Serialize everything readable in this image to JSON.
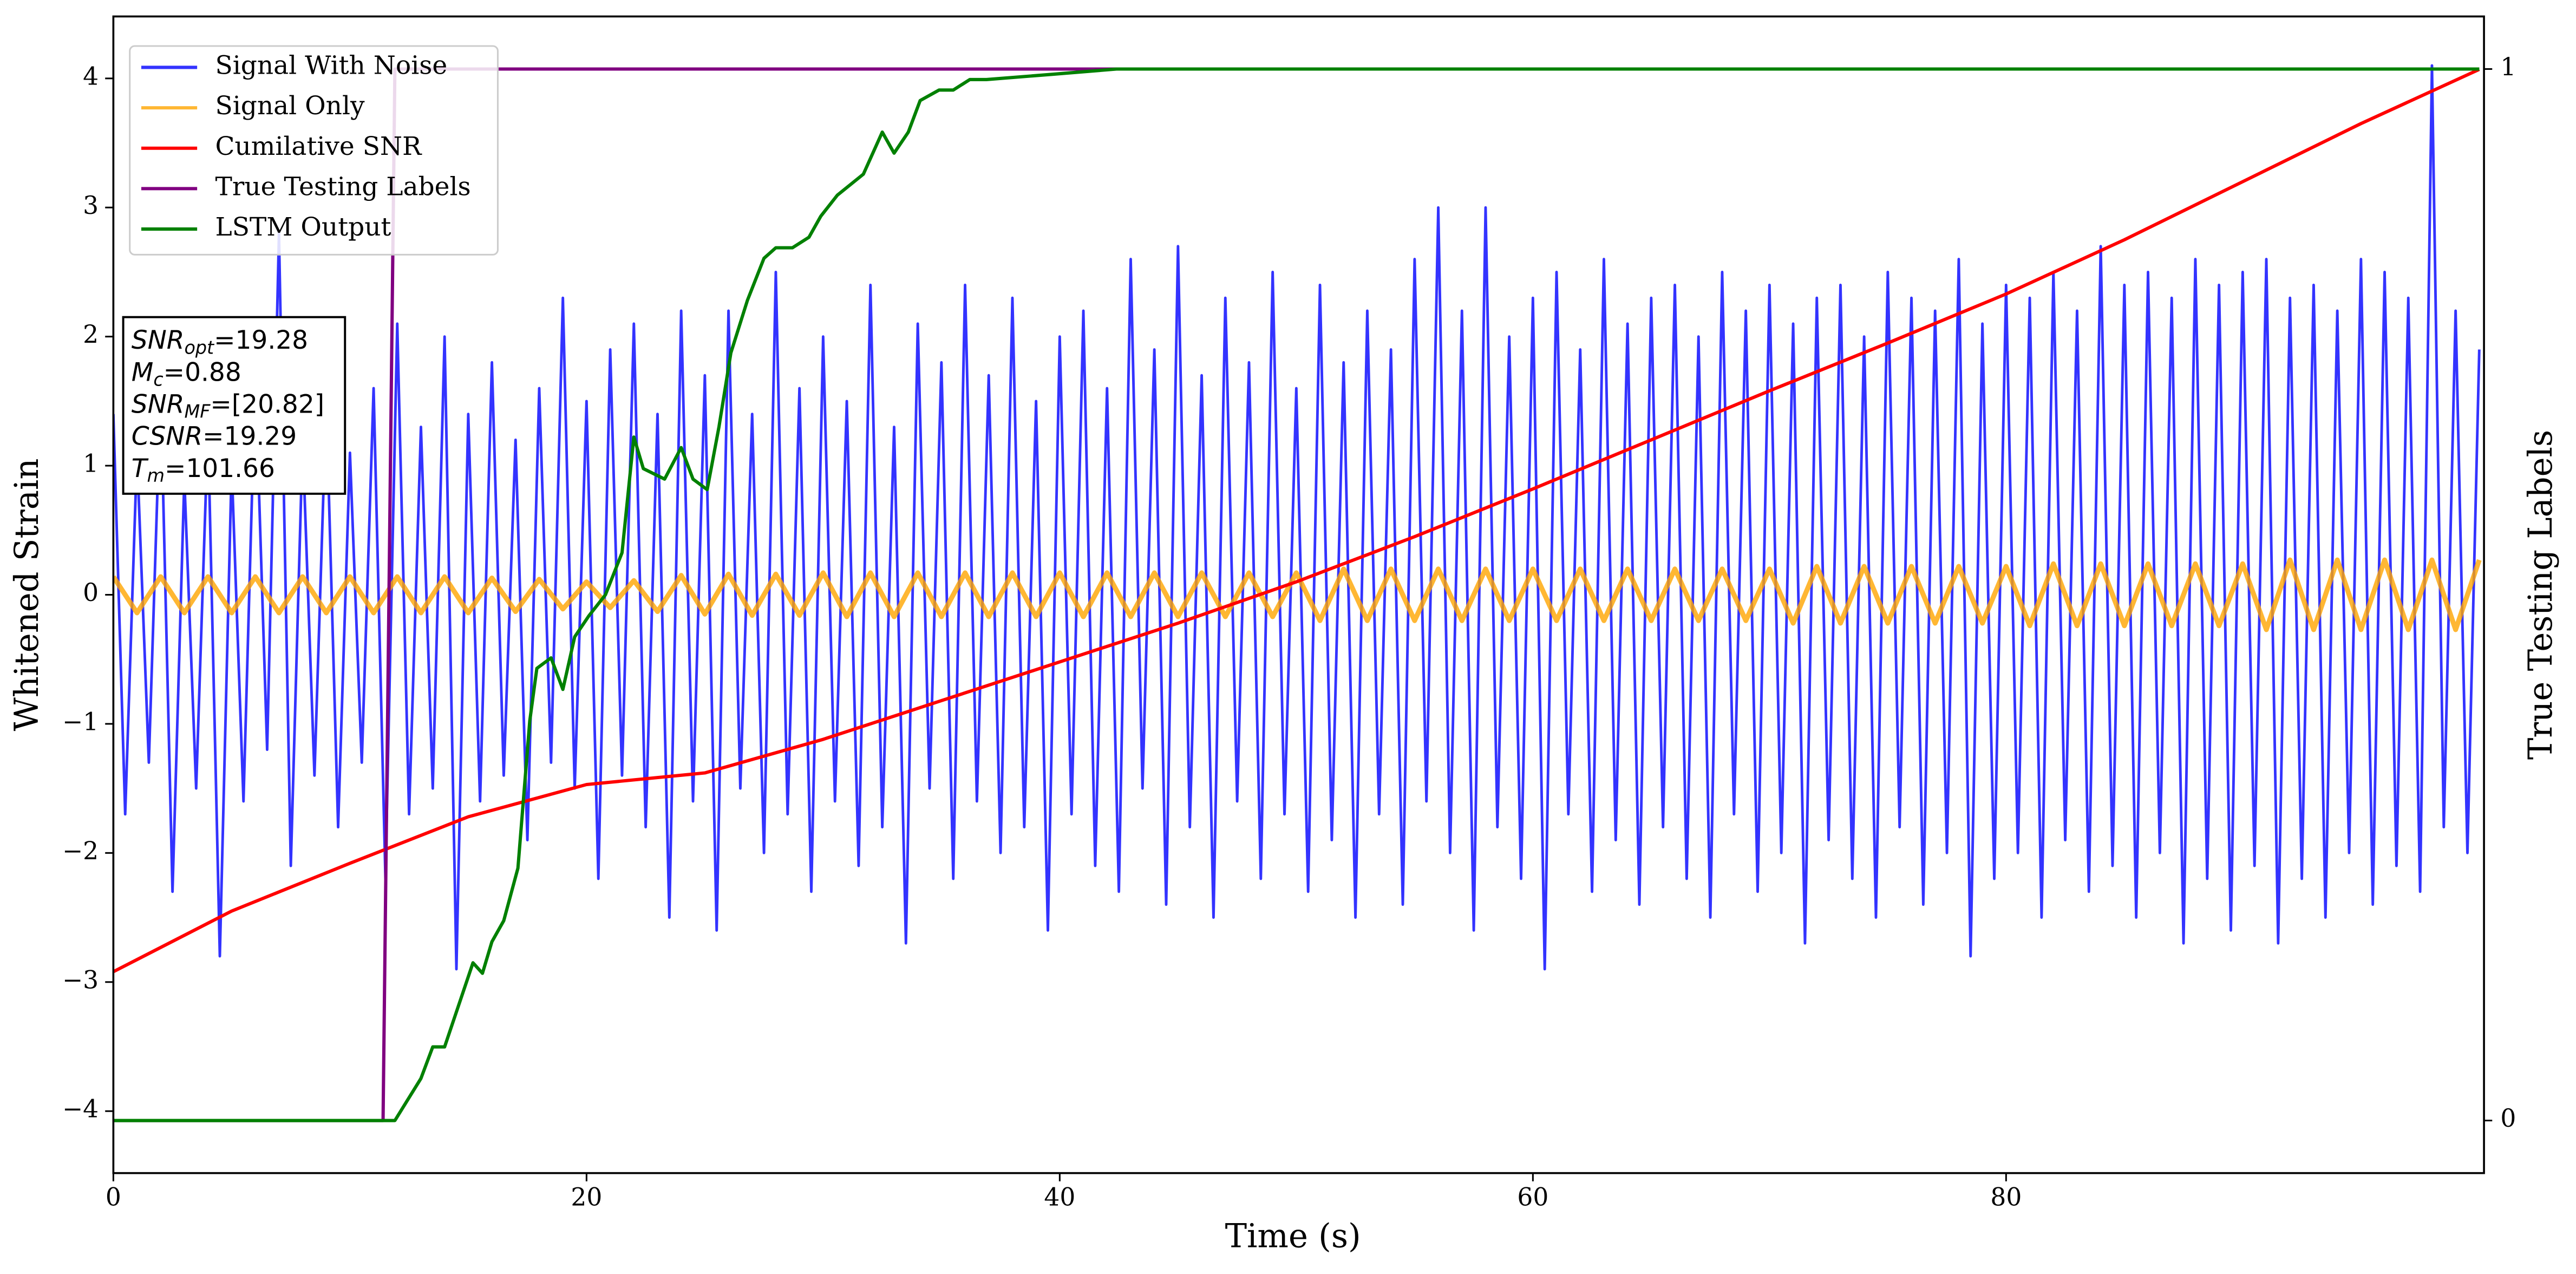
{
  "chart_data": {
    "type": "line",
    "xlabel": "Time (s)",
    "ylabel": "Whitened Strain",
    "y2label": "True Testing Labels",
    "xlim": [
      0,
      100.2
    ],
    "ylim": [
      -4.48,
      4.48
    ],
    "y2lim": [
      -0.05,
      1.05
    ],
    "xticks": [
      0,
      20,
      40,
      60,
      80
    ],
    "yticks": [
      {
        "value": -4,
        "label": "−4"
      },
      {
        "value": -3,
        "label": "−3"
      },
      {
        "value": -2,
        "label": "−2"
      },
      {
        "value": -1,
        "label": "−1"
      },
      0,
      1,
      2,
      3,
      4
    ],
    "y2ticks": [
      0,
      1
    ],
    "legend": "upper left",
    "annotation": [
      {
        "symbol": "SNR",
        "subscript": "opt",
        "value": "=19.28"
      },
      {
        "symbol": "M",
        "subscript": "c",
        "value": "=0.88"
      },
      {
        "symbol": "SNR",
        "subscript": "MF",
        "value": "=[20.82]"
      },
      {
        "symbol": "CSNR",
        "value": "=19.29"
      },
      {
        "symbol": "T",
        "subscript": "m",
        "value": "=101.66"
      }
    ],
    "series": [
      {
        "name": "Signal With Noise",
        "color": "#0000ff",
        "x": [
          0,
          0.5,
          1,
          1.5,
          2,
          2.5,
          3,
          3.5,
          4,
          4.5,
          5,
          5.5,
          6,
          6.5,
          7,
          7.5,
          8,
          8.5,
          9,
          9.5,
          10,
          10.5,
          11,
          11.5,
          12,
          12.5,
          13,
          13.5,
          14,
          14.5,
          15,
          15.5,
          16,
          16.5,
          17,
          17.5,
          18,
          18.5,
          19,
          19.5,
          20,
          20.5,
          21,
          21.5,
          22,
          22.5,
          23,
          23.5,
          24,
          24.5,
          25,
          25.5,
          26,
          26.5,
          27,
          27.5,
          28,
          28.5,
          29,
          29.5,
          30,
          30.5,
          31,
          31.5,
          32,
          32.5,
          33,
          33.5,
          34,
          34.5,
          35,
          35.5,
          36,
          36.5,
          37,
          37.5,
          38,
          38.5,
          39,
          39.5,
          40,
          40.5,
          41,
          41.5,
          42,
          42.5,
          43,
          43.5,
          44,
          44.5,
          45,
          45.5,
          46,
          46.5,
          47,
          47.5,
          48,
          48.5,
          49,
          49.5,
          50,
          50.5,
          51,
          51.5,
          52,
          52.5,
          53,
          53.5,
          54,
          54.5,
          55,
          55.5,
          56,
          56.5,
          57,
          57.5,
          58,
          58.5,
          59,
          59.5,
          60,
          60.5,
          61,
          61.5,
          62,
          62.5,
          63,
          63.5,
          64,
          64.5,
          65,
          65.5,
          66,
          66.5,
          67,
          67.5,
          68,
          68.5,
          69,
          69.5,
          70,
          70.5,
          71,
          71.5,
          72,
          72.5,
          73,
          73.5,
          74,
          74.5,
          75,
          75.5,
          76,
          76.5,
          77,
          77.5,
          78,
          78.5,
          79,
          79.5,
          80,
          80.5,
          81,
          81.5,
          82,
          82.5,
          83,
          83.5,
          84,
          84.5,
          85,
          85.5,
          86,
          86.5,
          87,
          87.5,
          88,
          88.5,
          89,
          89.5,
          90,
          90.5,
          91,
          91.5,
          92,
          92.5,
          93,
          93.5,
          94,
          94.5,
          95,
          95.5,
          96,
          96.5,
          97,
          97.5,
          98,
          98.5,
          99,
          99.5,
          100
        ],
        "values": [
          1.4,
          -1.7,
          1.1,
          -1.3,
          1.6,
          -2.3,
          0.9,
          -1.5,
          1.3,
          -2.8,
          1.0,
          -1.6,
          1.7,
          -1.2,
          2.8,
          -2.1,
          1.2,
          -1.4,
          1.5,
          -1.8,
          1.1,
          -1.3,
          1.6,
          -2.2,
          2.1,
          -1.7,
          1.3,
          -1.5,
          2.0,
          -2.9,
          1.4,
          -1.6,
          1.8,
          -1.4,
          1.2,
          -1.9,
          1.6,
          -1.3,
          2.3,
          -1.5,
          1.5,
          -2.2,
          1.9,
          -1.4,
          2.1,
          -1.8,
          1.4,
          -2.5,
          2.2,
          -1.6,
          1.7,
          -2.6,
          2.2,
          -1.5,
          1.4,
          -2.0,
          2.5,
          -1.7,
          1.6,
          -2.3,
          2.0,
          -1.6,
          1.5,
          -2.1,
          2.4,
          -1.8,
          1.3,
          -2.7,
          2.1,
          -1.5,
          1.8,
          -2.2,
          2.4,
          -1.6,
          1.7,
          -2.0,
          2.3,
          -1.8,
          1.5,
          -2.6,
          2.0,
          -1.7,
          2.2,
          -2.1,
          1.6,
          -2.3,
          2.6,
          -1.5,
          1.9,
          -2.4,
          2.7,
          -1.8,
          1.7,
          -2.5,
          2.3,
          -1.6,
          1.8,
          -2.2,
          2.5,
          -1.7,
          1.6,
          -2.3,
          2.4,
          -1.9,
          1.8,
          -2.5,
          2.2,
          -1.7,
          1.9,
          -2.4,
          2.6,
          -1.6,
          3.0,
          -2.0,
          2.2,
          -2.6,
          3.0,
          -1.8,
          2.0,
          -2.2,
          2.3,
          -2.9,
          2.5,
          -1.7,
          1.9,
          -2.3,
          2.6,
          -1.9,
          2.1,
          -2.4,
          2.3,
          -1.8,
          2.4,
          -2.2,
          2.0,
          -2.5,
          2.5,
          -1.7,
          2.2,
          -2.3,
          2.4,
          -2.0,
          2.1,
          -2.7,
          2.3,
          -1.9,
          2.4,
          -2.2,
          2.0,
          -2.5,
          2.5,
          -1.8,
          2.3,
          -2.4,
          2.2,
          -2.0,
          2.6,
          -2.8,
          2.1,
          -2.2,
          2.4,
          -2.0,
          2.3,
          -2.5,
          2.5,
          -1.9,
          2.2,
          -2.3,
          2.7,
          -2.1,
          2.4,
          -2.5,
          2.5,
          -2.0,
          2.3,
          -2.7,
          2.6,
          -2.2,
          2.4,
          -2.6,
          2.5,
          -2.1,
          2.6,
          -2.7,
          2.3,
          -2.2,
          2.4,
          -2.5,
          2.2,
          -2.0,
          2.6,
          -2.4,
          2.5,
          -2.1,
          2.3,
          -2.3,
          4.1,
          -1.8,
          2.2,
          -2.0,
          1.9
        ]
      },
      {
        "name": "Signal Only",
        "color": "#ffa500",
        "x": [
          0,
          1,
          2,
          3,
          4,
          5,
          6,
          7,
          8,
          9,
          10,
          11,
          12,
          13,
          14,
          15,
          16,
          17,
          18,
          19,
          20,
          21,
          22,
          23,
          24,
          25,
          26,
          27,
          28,
          29,
          30,
          31,
          32,
          33,
          34,
          35,
          36,
          37,
          38,
          39,
          40,
          41,
          42,
          43,
          44,
          45,
          46,
          47,
          48,
          49,
          50,
          51,
          52,
          53,
          54,
          55,
          56,
          57,
          58,
          59,
          60,
          61,
          62,
          63,
          64,
          65,
          66,
          67,
          68,
          69,
          70,
          71,
          72,
          73,
          74,
          75,
          76,
          77,
          78,
          79,
          80,
          81,
          82,
          83,
          84,
          85,
          86,
          87,
          88,
          89,
          90,
          91,
          92,
          93,
          94,
          95,
          96,
          97,
          98,
          99,
          100
        ],
        "values": [
          0.14,
          -0.14,
          0.14,
          -0.14,
          0.14,
          -0.14,
          0.14,
          -0.14,
          0.14,
          -0.14,
          0.14,
          -0.14,
          0.14,
          -0.14,
          0.14,
          -0.14,
          0.13,
          -0.13,
          0.12,
          -0.11,
          0.1,
          -0.1,
          0.11,
          -0.13,
          0.15,
          -0.15,
          0.16,
          -0.16,
          0.16,
          -0.16,
          0.17,
          -0.17,
          0.17,
          -0.17,
          0.17,
          -0.17,
          0.17,
          -0.17,
          0.17,
          -0.17,
          0.17,
          -0.17,
          0.17,
          -0.17,
          0.17,
          -0.17,
          0.17,
          -0.17,
          0.17,
          -0.17,
          0.17,
          -0.2,
          0.2,
          -0.2,
          0.2,
          -0.2,
          0.2,
          -0.2,
          0.2,
          -0.2,
          0.2,
          -0.2,
          0.2,
          -0.2,
          0.2,
          -0.2,
          0.2,
          -0.2,
          0.2,
          -0.2,
          0.2,
          -0.22,
          0.22,
          -0.22,
          0.22,
          -0.22,
          0.22,
          -0.22,
          0.22,
          -0.22,
          0.22,
          -0.24,
          0.24,
          -0.24,
          0.24,
          -0.24,
          0.24,
          -0.24,
          0.24,
          -0.24,
          0.24,
          -0.27,
          0.27,
          -0.27,
          0.27,
          -0.27,
          0.27,
          -0.27,
          0.27,
          -0.27,
          0.27
        ]
      },
      {
        "name": "Cumilative SNR",
        "color": "#ff0000",
        "x": [
          0,
          5,
          10,
          15,
          20,
          25,
          30,
          35,
          40,
          45,
          50,
          55,
          60,
          65,
          70,
          75,
          80,
          85,
          90,
          95,
          100
        ],
        "values": [
          -2.92,
          -2.45,
          -2.08,
          -1.72,
          -1.47,
          -1.38,
          -1.12,
          -0.82,
          -0.52,
          -0.22,
          0.1,
          0.45,
          0.82,
          1.2,
          1.58,
          1.95,
          2.33,
          2.75,
          3.2,
          3.65,
          4.07
        ]
      },
      {
        "name": "True Testing Labels",
        "color": "#800080",
        "axis": "y2",
        "x": [
          0,
          11.4,
          11.9,
          100
        ],
        "values": [
          0,
          0,
          1,
          1
        ]
      },
      {
        "name": "LSTM Output",
        "color": "#008000",
        "axis": "y2",
        "x": [
          0,
          11.9,
          13,
          13.5,
          14,
          14.6,
          15.2,
          15.6,
          16,
          16.5,
          17.1,
          17.6,
          17.9,
          18.5,
          19,
          19.5,
          20.1,
          20.8,
          21.5,
          22,
          22.4,
          23.3,
          24,
          24.5,
          25.1,
          25.6,
          26.1,
          26.8,
          27.5,
          28,
          28.7,
          29.4,
          29.9,
          30.6,
          31.7,
          32.5,
          33,
          33.6,
          34.1,
          34.9,
          35.5,
          36.2,
          36.9,
          39.7,
          42.4,
          50.8,
          100
        ],
        "values": [
          0,
          0,
          0.04,
          0.07,
          0.07,
          0.11,
          0.15,
          0.14,
          0.17,
          0.19,
          0.24,
          0.38,
          0.43,
          0.44,
          0.41,
          0.46,
          0.48,
          0.5,
          0.54,
          0.65,
          0.62,
          0.61,
          0.64,
          0.61,
          0.6,
          0.66,
          0.73,
          0.78,
          0.82,
          0.83,
          0.83,
          0.84,
          0.86,
          0.88,
          0.9,
          0.94,
          0.92,
          0.94,
          0.97,
          0.98,
          0.98,
          0.99,
          0.99,
          0.995,
          1.0,
          1.0,
          1.0
        ]
      }
    ]
  }
}
